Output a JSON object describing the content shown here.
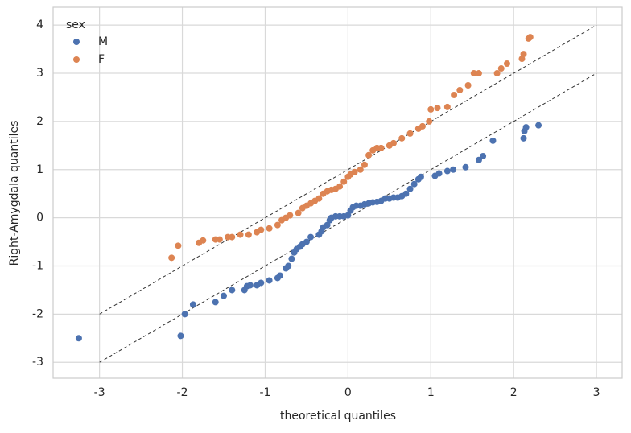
{
  "chart_data": {
    "type": "scatter",
    "xlabel": "theoretical quantiles",
    "ylabel": "Right-Amygdala quantiles",
    "legend_title": "sex",
    "legend": "upper left",
    "grid": true,
    "xlim": [
      -3.56,
      3.31
    ],
    "ylim": [
      -3.33,
      4.37
    ],
    "xticks": [
      -3,
      -2,
      -1,
      0,
      1,
      2,
      3
    ],
    "yticks": [
      -3,
      -2,
      -1,
      0,
      1,
      2,
      3,
      4
    ],
    "reference_lines": [
      {
        "x": [
          -3,
          3
        ],
        "y": [
          -2,
          4
        ]
      },
      {
        "x": [
          -3,
          3
        ],
        "y": [
          -3,
          3
        ]
      }
    ],
    "series": [
      {
        "name": "M",
        "color": "#4c72b0",
        "x": [
          -3.25,
          -2.02,
          -1.97,
          -1.87,
          -1.6,
          -1.5,
          -1.4,
          -1.25,
          -1.22,
          -1.18,
          -1.1,
          -1.05,
          -0.95,
          -0.85,
          -0.82,
          -0.75,
          -0.72,
          -0.68,
          -0.65,
          -0.62,
          -0.58,
          -0.55,
          -0.5,
          -0.45,
          -0.35,
          -0.32,
          -0.3,
          -0.25,
          -0.22,
          -0.2,
          -0.15,
          -0.1,
          -0.05,
          0.0,
          0.03,
          0.06,
          0.1,
          0.15,
          0.2,
          0.25,
          0.3,
          0.35,
          0.4,
          0.45,
          0.5,
          0.55,
          0.6,
          0.65,
          0.7,
          0.75,
          0.8,
          0.85,
          0.88,
          1.05,
          1.1,
          1.2,
          1.27,
          1.42,
          1.58,
          1.63,
          1.75,
          2.12,
          2.13,
          2.15,
          2.3
        ],
        "values": [
          -2.5,
          -2.45,
          -2.0,
          -1.8,
          -1.75,
          -1.62,
          -1.5,
          -1.5,
          -1.42,
          -1.4,
          -1.4,
          -1.35,
          -1.3,
          -1.25,
          -1.2,
          -1.05,
          -1.0,
          -0.85,
          -0.72,
          -0.65,
          -0.6,
          -0.55,
          -0.5,
          -0.4,
          -0.35,
          -0.28,
          -0.2,
          -0.15,
          -0.05,
          0.0,
          0.03,
          0.03,
          0.03,
          0.05,
          0.15,
          0.22,
          0.25,
          0.25,
          0.28,
          0.3,
          0.32,
          0.33,
          0.35,
          0.4,
          0.4,
          0.42,
          0.42,
          0.45,
          0.5,
          0.6,
          0.7,
          0.8,
          0.85,
          0.87,
          0.92,
          0.97,
          1.0,
          1.05,
          1.2,
          1.28,
          1.6,
          1.65,
          1.8,
          1.88,
          1.92
        ]
      },
      {
        "name": "F",
        "color": "#dd8452",
        "x": [
          -2.13,
          -2.05,
          -1.8,
          -1.75,
          -1.6,
          -1.55,
          -1.45,
          -1.4,
          -1.3,
          -1.2,
          -1.1,
          -1.05,
          -0.95,
          -0.85,
          -0.8,
          -0.75,
          -0.7,
          -0.6,
          -0.55,
          -0.5,
          -0.45,
          -0.4,
          -0.35,
          -0.3,
          -0.25,
          -0.2,
          -0.15,
          -0.1,
          -0.05,
          0.0,
          0.03,
          0.08,
          0.15,
          0.2,
          0.25,
          0.3,
          0.35,
          0.4,
          0.5,
          0.55,
          0.65,
          0.75,
          0.85,
          0.9,
          0.98,
          1.0,
          1.08,
          1.2,
          1.28,
          1.35,
          1.45,
          1.52,
          1.58,
          1.8,
          1.85,
          1.92,
          2.1,
          2.12,
          2.18,
          2.2
        ],
        "values": [
          -0.83,
          -0.58,
          -0.52,
          -0.47,
          -0.45,
          -0.45,
          -0.4,
          -0.4,
          -0.35,
          -0.35,
          -0.3,
          -0.25,
          -0.22,
          -0.15,
          -0.05,
          0.0,
          0.05,
          0.1,
          0.2,
          0.25,
          0.3,
          0.35,
          0.4,
          0.5,
          0.55,
          0.58,
          0.6,
          0.65,
          0.75,
          0.85,
          0.9,
          0.95,
          1.0,
          1.1,
          1.3,
          1.4,
          1.45,
          1.45,
          1.5,
          1.55,
          1.65,
          1.75,
          1.85,
          1.9,
          2.0,
          2.25,
          2.28,
          2.3,
          2.55,
          2.65,
          2.75,
          3.0,
          3.0,
          3.0,
          3.1,
          3.2,
          3.3,
          3.4,
          3.72,
          3.75
        ]
      }
    ]
  }
}
